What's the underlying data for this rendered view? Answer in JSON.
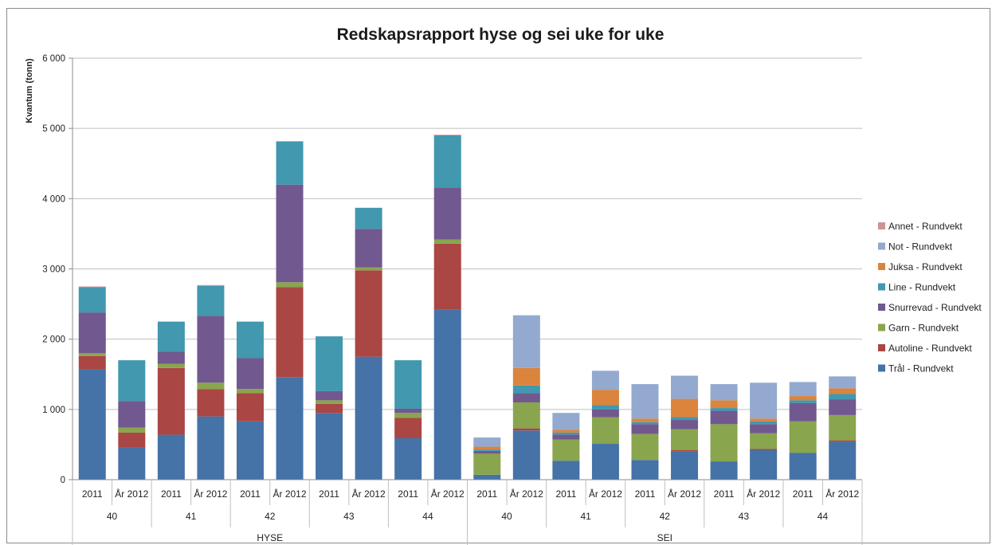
{
  "chart_data": {
    "type": "bar",
    "stacked": true,
    "title": "Redskapsrapport hyse og sei uke for uke",
    "ylabel": "Kvantum (tonn)",
    "ylim": [
      0,
      6000
    ],
    "yticks": [
      0,
      1000,
      2000,
      3000,
      4000,
      5000,
      6000
    ],
    "ytick_labels": [
      "0",
      "1 000",
      "2 000",
      "3 000",
      "4 000",
      "5 000",
      "6 000"
    ],
    "grid": "horizontal",
    "legend_position": "right",
    "categories": [
      "2011",
      "År 2012",
      "2011",
      "År 2012",
      "2011",
      "År 2012",
      "2011",
      "År 2012",
      "2011",
      "År 2012",
      "2011",
      "År 2012",
      "2011",
      "År 2012",
      "2011",
      "År 2012",
      "2011",
      "År 2012",
      "2011",
      "År 2012"
    ],
    "weeks": [
      {
        "label": "40",
        "span": 2
      },
      {
        "label": "41",
        "span": 2
      },
      {
        "label": "42",
        "span": 2
      },
      {
        "label": "43",
        "span": 2
      },
      {
        "label": "44",
        "span": 2
      },
      {
        "label": "40",
        "span": 2
      },
      {
        "label": "41",
        "span": 2
      },
      {
        "label": "42",
        "span": 2
      },
      {
        "label": "43",
        "span": 2
      },
      {
        "label": "44",
        "span": 2
      }
    ],
    "groups": [
      {
        "label": "HYSE",
        "span": 10
      },
      {
        "label": "SEI",
        "span": 10
      }
    ],
    "series": [
      {
        "name": "Trål - Rundvekt",
        "color": "#4572A7",
        "values": [
          1570,
          460,
          640,
          900,
          830,
          1460,
          950,
          1750,
          590,
          2420,
          70,
          700,
          270,
          510,
          280,
          400,
          260,
          420,
          380,
          540
        ]
      },
      {
        "name": "Autoline - Rundvekt",
        "color": "#AA4643",
        "values": [
          190,
          210,
          950,
          390,
          400,
          1280,
          130,
          1230,
          290,
          940,
          0,
          30,
          0,
          0,
          0,
          20,
          0,
          20,
          0,
          20
        ]
      },
      {
        "name": "Garn - Rundvekt",
        "color": "#89A54E",
        "values": [
          40,
          70,
          60,
          90,
          60,
          70,
          50,
          40,
          70,
          60,
          300,
          370,
          300,
          380,
          370,
          300,
          530,
          220,
          450,
          360
        ]
      },
      {
        "name": "Snurrevad - Rundvekt",
        "color": "#71588F",
        "values": [
          580,
          380,
          170,
          950,
          440,
          1390,
          130,
          550,
          60,
          740,
          40,
          130,
          70,
          110,
          140,
          130,
          190,
          130,
          260,
          220
        ]
      },
      {
        "name": "Line - Rundvekt",
        "color": "#4198AF",
        "values": [
          360,
          580,
          430,
          430,
          520,
          610,
          780,
          300,
          690,
          740,
          20,
          110,
          30,
          60,
          30,
          40,
          40,
          40,
          40,
          80
        ]
      },
      {
        "name": "Juksa - Rundvekt",
        "color": "#DB843D",
        "values": [
          0,
          0,
          0,
          0,
          0,
          0,
          0,
          0,
          0,
          0,
          40,
          250,
          40,
          220,
          50,
          260,
          110,
          40,
          60,
          80
        ]
      },
      {
        "name": "Not - Rundvekt",
        "color": "#93A9CF",
        "values": [
          0,
          0,
          0,
          0,
          0,
          0,
          0,
          0,
          0,
          0,
          130,
          750,
          240,
          270,
          490,
          330,
          230,
          510,
          200,
          170
        ]
      },
      {
        "name": "Annet - Rundvekt",
        "color": "#D19392",
        "values": [
          10,
          0,
          0,
          10,
          0,
          10,
          0,
          0,
          0,
          10,
          0,
          0,
          0,
          0,
          0,
          0,
          0,
          0,
          0,
          0
        ]
      }
    ]
  }
}
